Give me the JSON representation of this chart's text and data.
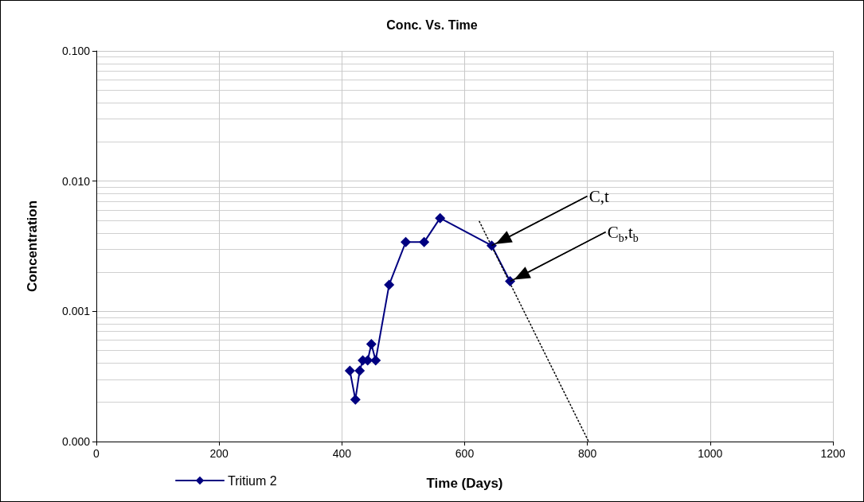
{
  "chart_data": {
    "type": "line",
    "title": "Conc. Vs. Time",
    "xlabel": "Time (Days)",
    "ylabel": "Concentration",
    "log": "y",
    "grid": true,
    "legend": "bottom left",
    "marker": "diamond",
    "xlim": [
      0,
      1200
    ],
    "xticks": [
      0,
      200,
      400,
      600,
      800,
      1000,
      1200
    ],
    "ylim": [
      0.0001,
      0.1
    ],
    "yticks": [
      {
        "value": 0.0001,
        "label": "0.000"
      },
      {
        "value": 0.001,
        "label": "0.001"
      },
      {
        "value": 0.01,
        "label": "0.010"
      },
      {
        "value": 0.1,
        "label": "0.100"
      }
    ],
    "series": [
      {
        "name": "Tritium 2",
        "color": "#000080",
        "x": [
          413,
          422,
          429,
          434,
          442,
          448,
          455,
          477,
          504,
          534,
          560,
          644,
          674
        ],
        "values": [
          0.00035,
          0.00021,
          0.00035,
          0.00042,
          0.00042,
          0.00056,
          0.00042,
          0.0016,
          0.0034,
          0.0034,
          0.0052,
          0.0032,
          0.0017
        ]
      },
      {
        "type": "line",
        "color": "#000000",
        "line_style": "dotted",
        "marker": "none",
        "x": [
          624,
          802
        ],
        "values": [
          0.0049,
          0.0001
        ]
      }
    ],
    "annotations": [
      {
        "text": "C,t",
        "x": 644,
        "y": 0.0032
      },
      {
        "text": "C$_{b}$,t$_{b}$",
        "x": 674,
        "y": 0.0017
      }
    ]
  }
}
